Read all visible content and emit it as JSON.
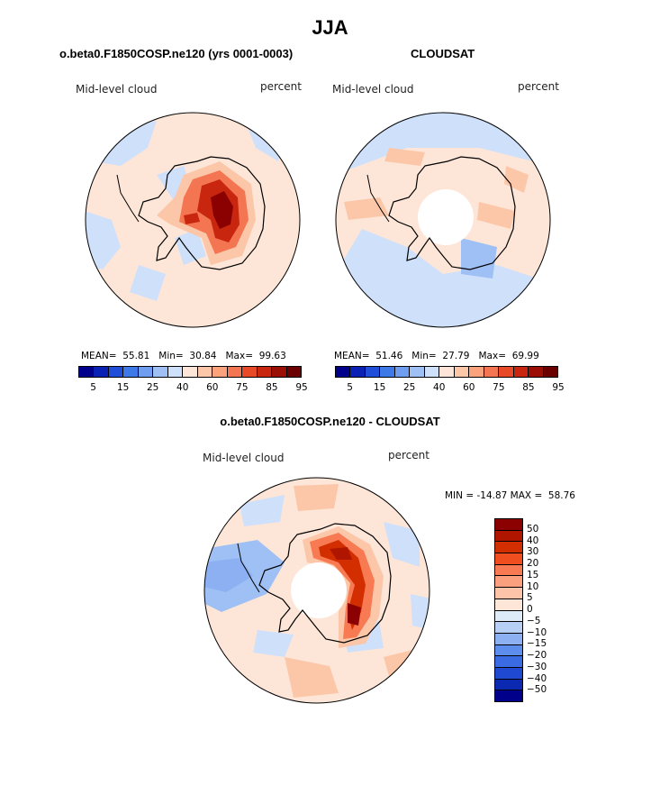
{
  "page": {
    "title": "JJA"
  },
  "panels": {
    "model": {
      "title": "o.beta0.F1850COSP.ne120 (yrs 0001-0003)",
      "variable": "Mid-level cloud",
      "units": "percent",
      "mean_label": "MEAN=",
      "mean_value": "55.81",
      "min_label": "Min=",
      "min_value": "30.84",
      "max_label": "Max=",
      "max_value": "99.63"
    },
    "obs": {
      "title": "CLOUDSAT",
      "variable": "Mid-level cloud",
      "units": "percent",
      "mean_label": "MEAN=",
      "mean_value": "51.46",
      "min_label": "Min=",
      "min_value": "27.79",
      "max_label": "Max=",
      "max_value": "69.99"
    },
    "diff": {
      "title": "o.beta0.F1850COSP.ne120 - CLOUDSAT",
      "variable": "Mid-level cloud",
      "units": "percent",
      "minmax_text": "MIN = -14.87 MAX =  58.76"
    }
  },
  "colorbar_abs": {
    "colors": [
      "#00008b",
      "#0a22b4",
      "#1f4fd9",
      "#3d7ae8",
      "#6f9df0",
      "#9fc0f5",
      "#cfe0fa",
      "#fde6d8",
      "#fcc7a8",
      "#f9a27c",
      "#f47551",
      "#e84a27",
      "#c8260f",
      "#9a0e05",
      "#6b0000"
    ],
    "tick_labels": [
      "5",
      "15",
      "25",
      "40",
      "60",
      "75",
      "85",
      "95"
    ]
  },
  "colorbar_diff": {
    "colors": [
      "#8b0000",
      "#b01500",
      "#d32e00",
      "#f04e1e",
      "#f77a52",
      "#fba07e",
      "#fdc4a9",
      "#fde6d8",
      "#ddeaf8",
      "#b7cff5",
      "#8cb0f2",
      "#5d8ded",
      "#3a6be3",
      "#2049d2",
      "#0a28b0",
      "#00008b"
    ],
    "tick_labels": [
      "50",
      "40",
      "30",
      "20",
      "15",
      "10",
      "5",
      "0",
      "−5",
      "−10",
      "−15",
      "−20",
      "−30",
      "−40",
      "−50"
    ]
  },
  "map_colors": {
    "background": "#fde6d8",
    "light_blue": "#cfe0fa",
    "mid_blue": "#9fc0f5",
    "dark_blue": "#6f9df0",
    "light_red": "#fcc7a8",
    "mid_red": "#f47551",
    "dark_red": "#c8260f",
    "deep_red": "#8b0000",
    "coast": "#000000",
    "hole": "#ffffff"
  }
}
